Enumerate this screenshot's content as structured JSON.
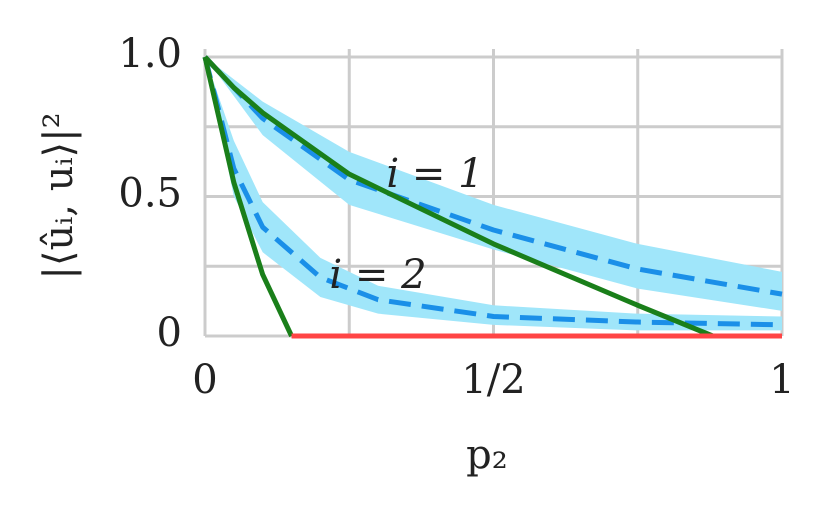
{
  "chart_data": {
    "type": "line",
    "x_label": "p₂",
    "y_label": "|⟨ûᵢ, uᵢ⟩|²",
    "annotations": [
      "i = 1",
      "i = 2"
    ],
    "xlim": [
      0,
      1
    ],
    "ylim": [
      0,
      1
    ],
    "xticks": [
      0,
      {
        "value": 0.25,
        "label": null
      },
      {
        "value": 0.5,
        "label": "1/2"
      },
      {
        "value": 0.75,
        "label": null
      },
      1
    ],
    "yticks": [
      0,
      {
        "value": 0.25,
        "label": null
      },
      0.5,
      {
        "value": 0.75,
        "label": null
      },
      {
        "value": 1,
        "label": "1.0"
      }
    ],
    "grid": true,
    "series": [
      {
        "kind": "band",
        "color": "#a0e6fa",
        "x": [
          0,
          0.1,
          0.25,
          0.5,
          0.75,
          1
        ],
        "upper": [
          1,
          0.84,
          0.66,
          0.47,
          0.33,
          0.23
        ],
        "lower": [
          1,
          0.72,
          0.47,
          0.31,
          0.17,
          0.09
        ]
      },
      {
        "kind": "band",
        "color": "#a0e6fa",
        "x": [
          0,
          0.05,
          0.1,
          0.2,
          0.3,
          0.5,
          0.75,
          1
        ],
        "upper": [
          1,
          0.7,
          0.48,
          0.28,
          0.18,
          0.11,
          0.08,
          0.07
        ],
        "lower": [
          1,
          0.5,
          0.3,
          0.14,
          0.08,
          0.04,
          0.02,
          0.02
        ]
      },
      {
        "kind": "line",
        "style": "dashed",
        "color": "#1a8fe8",
        "x": [
          0,
          0.1,
          0.25,
          0.5,
          0.75,
          1
        ],
        "values": [
          1,
          0.78,
          0.56,
          0.38,
          0.24,
          0.15
        ]
      },
      {
        "kind": "line",
        "style": "dashed",
        "color": "#1a8fe8",
        "x": [
          0,
          0.05,
          0.1,
          0.2,
          0.3,
          0.5,
          0.75,
          1
        ],
        "values": [
          1,
          0.6,
          0.39,
          0.21,
          0.13,
          0.07,
          0.05,
          0.04
        ]
      },
      {
        "kind": "line",
        "style": "solid",
        "color": "#1a7f1a",
        "x": [
          0,
          0.05,
          0.1,
          0.25,
          0.5,
          0.75,
          0.88
        ],
        "values": [
          1,
          0.89,
          0.8,
          0.58,
          0.33,
          0.11,
          0
        ]
      },
      {
        "kind": "line",
        "style": "solid",
        "color": "#1a7f1a",
        "x": [
          0,
          0.05,
          0.1,
          0.15
        ],
        "values": [
          1,
          0.55,
          0.22,
          0
        ]
      },
      {
        "kind": "line",
        "style": "solid",
        "color": "#ff4545",
        "x": [
          0.15,
          1
        ],
        "values": [
          0,
          0
        ]
      }
    ]
  }
}
